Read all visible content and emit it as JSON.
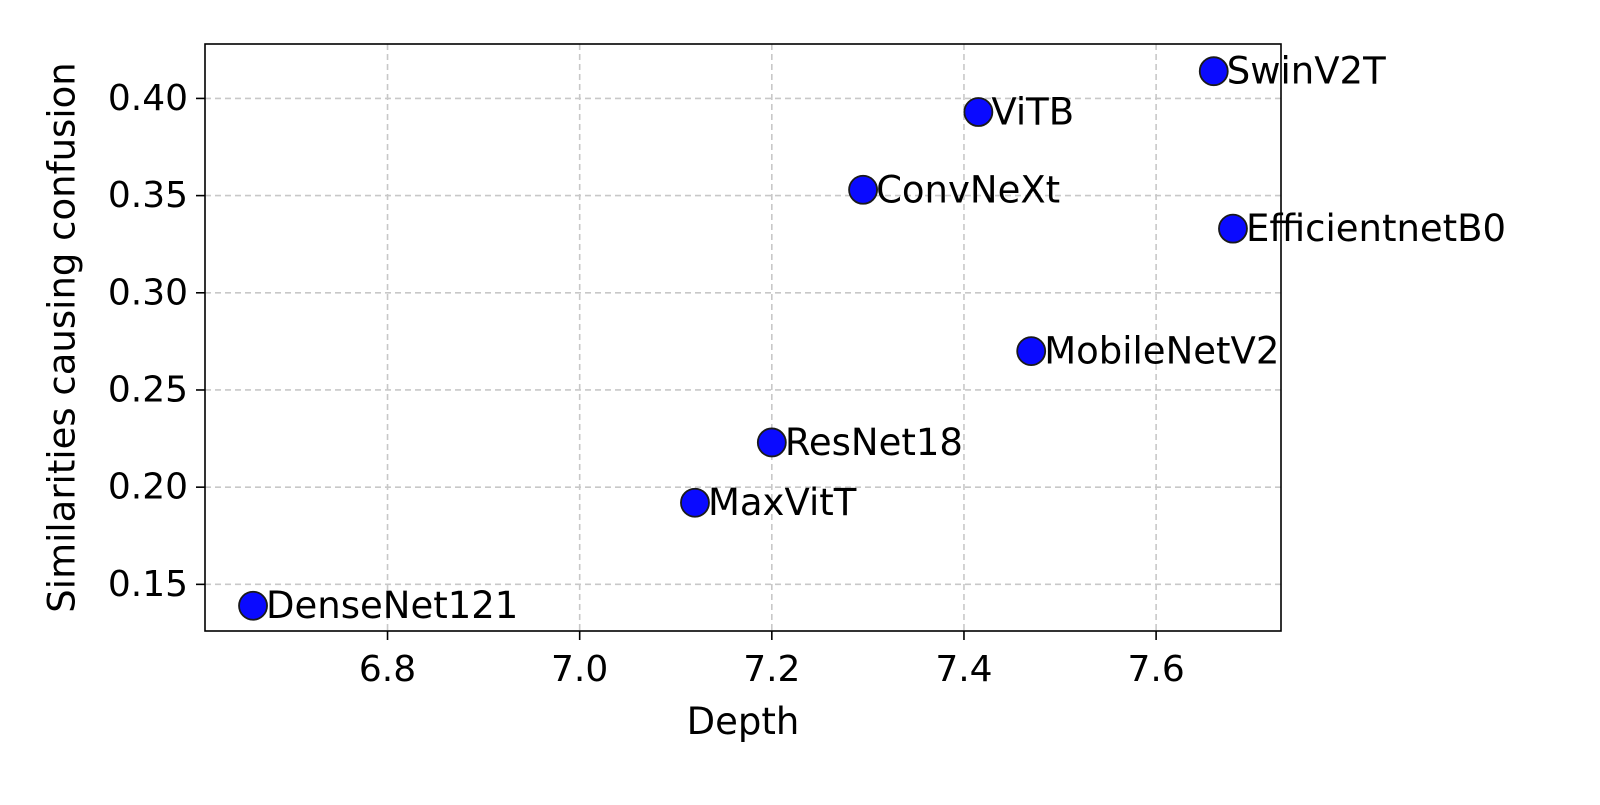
{
  "chart_data": {
    "type": "scatter",
    "title": "",
    "xlabel": "Depth",
    "ylabel": "Similarities causing confusion",
    "xlim": [
      6.61,
      7.73
    ],
    "ylim": [
      0.126,
      0.428
    ],
    "xticks": [
      6.8,
      7.0,
      7.2,
      7.4,
      7.6
    ],
    "yticks": [
      0.15,
      0.2,
      0.25,
      0.3,
      0.35,
      0.4
    ],
    "xtick_labels": [
      "6.8",
      "7.0",
      "7.2",
      "7.4",
      "7.6"
    ],
    "ytick_labels": [
      "0.15",
      "0.20",
      "0.25",
      "0.30",
      "0.35",
      "0.40"
    ],
    "grid": true,
    "grid_style": "dashed",
    "marker_color": "#0a0aff",
    "marker_edge_color": "#1a1a1a",
    "points": [
      {
        "label": "DenseNet121",
        "x": 6.66,
        "y": 0.139
      },
      {
        "label": "MaxVitT",
        "x": 7.12,
        "y": 0.192
      },
      {
        "label": "ResNet18",
        "x": 7.2,
        "y": 0.223
      },
      {
        "label": "ConvNeXt",
        "x": 7.295,
        "y": 0.353
      },
      {
        "label": "ViTB",
        "x": 7.415,
        "y": 0.393
      },
      {
        "label": "MobileNetV2",
        "x": 7.47,
        "y": 0.27
      },
      {
        "label": "SwinV2T",
        "x": 7.66,
        "y": 0.414
      },
      {
        "label": "EfficientnetB0",
        "x": 7.68,
        "y": 0.333
      }
    ]
  }
}
